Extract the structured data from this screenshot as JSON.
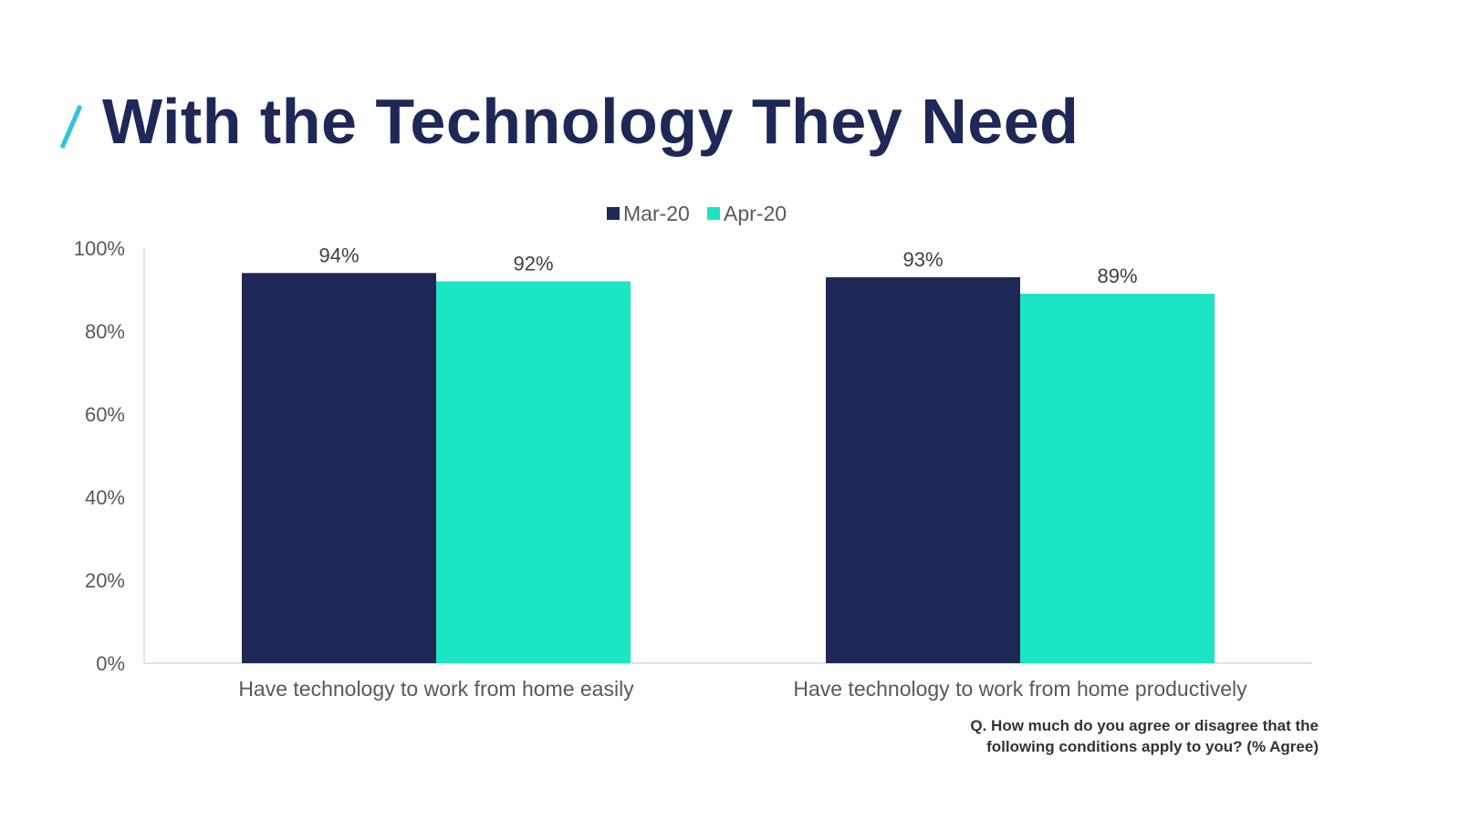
{
  "page": {
    "title": "With the Technology They Need",
    "accent_color": "#2ec4dc",
    "title_color": "#1f2756"
  },
  "footnote": {
    "line1": "Q. How much do you agree or disagree that the",
    "line2": "following conditions apply to you? (% Agree)"
  },
  "chart_data": {
    "type": "bar",
    "title": "",
    "xlabel": "",
    "ylabel": "",
    "categories": [
      "Have technology to work from home easily",
      "Have technology to work from home productively"
    ],
    "series": [
      {
        "name": "Mar-20",
        "values": [
          94,
          93
        ],
        "color": "#1f2756"
      },
      {
        "name": "Apr-20",
        "values": [
          92,
          89
        ],
        "color": "#1be5c2"
      }
    ],
    "ylim": [
      0,
      100
    ],
    "yticks": [
      0,
      20,
      40,
      60,
      80,
      100
    ],
    "ytick_labels": [
      "0%",
      "20%",
      "40%",
      "60%",
      "80%",
      "100%"
    ],
    "data_labels": [
      [
        "94%",
        "93%"
      ],
      [
        "92%",
        "89%"
      ]
    ],
    "grid": false,
    "legend": "top-center"
  }
}
